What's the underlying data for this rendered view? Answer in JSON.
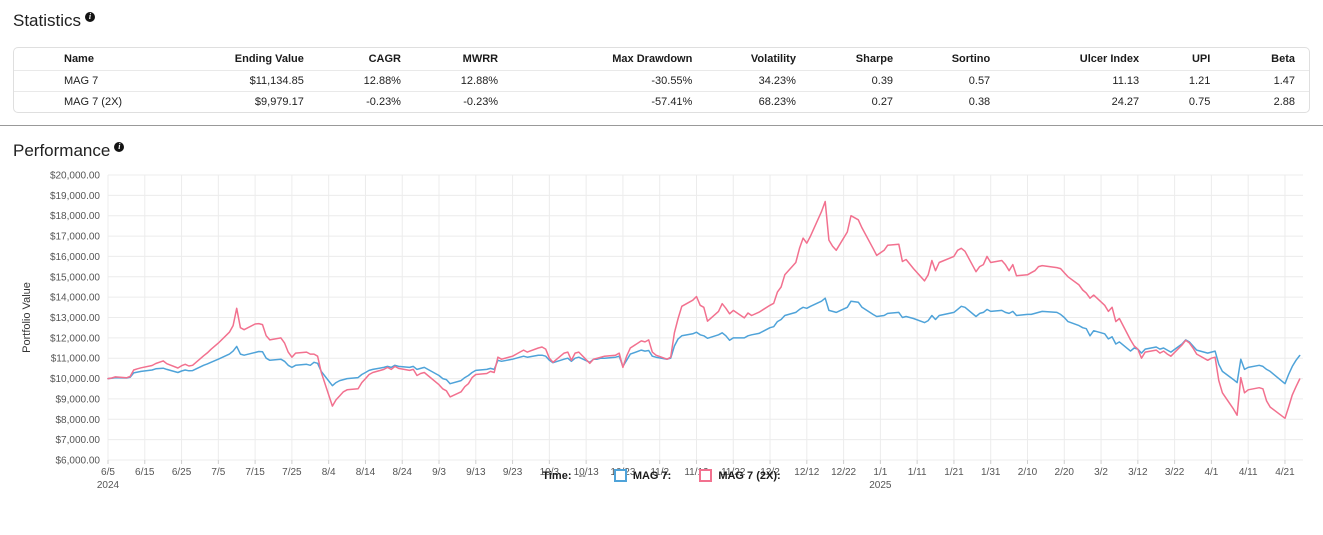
{
  "statistics": {
    "title": "Statistics",
    "info_icon_glyph": "i",
    "table": {
      "columns": [
        "Name",
        "Ending Value",
        "CAGR",
        "MWRR",
        "Max Drawdown",
        "Volatility",
        "Sharpe",
        "Sortino",
        "Ulcer Index",
        "UPI",
        "Beta"
      ],
      "rows": [
        [
          "MAG 7",
          "$11,134.85",
          "12.88%",
          "12.88%",
          "-30.55%",
          "34.23%",
          "0.39",
          "0.57",
          "11.13",
          "1.21",
          "1.47"
        ],
        [
          "MAG 7 (2X)",
          "$9,979.17",
          "-0.23%",
          "-0.23%",
          "-57.41%",
          "68.23%",
          "0.27",
          "0.38",
          "24.27",
          "0.75",
          "2.88"
        ]
      ]
    }
  },
  "performance": {
    "title": "Performance",
    "info_icon_glyph": "i"
  },
  "legend": {
    "time_label": "Time:",
    "time_value": "--",
    "items": [
      {
        "label": "MAG 7:",
        "color": "#4fa3d9"
      },
      {
        "label": "MAG 7 (2X):",
        "color": "#f2718f"
      }
    ]
  },
  "chart_data": {
    "type": "line",
    "title": "",
    "xlabel": "",
    "ylabel": "Portfolio Value",
    "ylim": [
      6000,
      20000
    ],
    "ytick_step": 1000,
    "grid": true,
    "legend_position": "bottom",
    "ytick_labels": [
      "$20,000.00",
      "$19,000.00",
      "$18,000.00",
      "$17,000.00",
      "$16,000.00",
      "$15,000.00",
      "$14,000.00",
      "$13,000.00",
      "$12,000.00",
      "$11,000.00",
      "$10,000.00",
      "$9,000.00",
      "$8,000.00",
      "$7,000.00",
      "$6,000.00"
    ],
    "xticks": [
      {
        "label": "6/5",
        "year": "2024",
        "date": "2024-06-05"
      },
      {
        "label": "6/15",
        "date": "2024-06-15"
      },
      {
        "label": "6/25",
        "date": "2024-06-25"
      },
      {
        "label": "7/5",
        "date": "2024-07-05"
      },
      {
        "label": "7/15",
        "date": "2024-07-15"
      },
      {
        "label": "7/25",
        "date": "2024-07-25"
      },
      {
        "label": "8/4",
        "date": "2024-08-04"
      },
      {
        "label": "8/14",
        "date": "2024-08-14"
      },
      {
        "label": "8/24",
        "date": "2024-08-24"
      },
      {
        "label": "9/3",
        "date": "2024-09-03"
      },
      {
        "label": "9/13",
        "date": "2024-09-13"
      },
      {
        "label": "9/23",
        "date": "2024-09-23"
      },
      {
        "label": "10/3",
        "date": "2024-10-03"
      },
      {
        "label": "10/13",
        "date": "2024-10-13"
      },
      {
        "label": "10/23",
        "date": "2024-10-23"
      },
      {
        "label": "11/2",
        "date": "2024-11-02"
      },
      {
        "label": "11/12",
        "date": "2024-11-12"
      },
      {
        "label": "11/22",
        "date": "2024-11-22"
      },
      {
        "label": "12/2",
        "date": "2024-12-02"
      },
      {
        "label": "12/12",
        "date": "2024-12-12"
      },
      {
        "label": "12/22",
        "date": "2024-12-22"
      },
      {
        "label": "1/1",
        "year": "2025",
        "date": "2025-01-01"
      },
      {
        "label": "1/11",
        "date": "2025-01-11"
      },
      {
        "label": "1/21",
        "date": "2025-01-21"
      },
      {
        "label": "1/31",
        "date": "2025-01-31"
      },
      {
        "label": "2/10",
        "date": "2025-02-10"
      },
      {
        "label": "2/20",
        "date": "2025-02-20"
      },
      {
        "label": "3/2",
        "date": "2025-03-02"
      },
      {
        "label": "3/12",
        "date": "2025-03-12"
      },
      {
        "label": "3/22",
        "date": "2025-03-22"
      },
      {
        "label": "4/1",
        "date": "2025-04-01"
      },
      {
        "label": "4/11",
        "date": "2025-04-11"
      },
      {
        "label": "4/21",
        "date": "2025-04-21"
      }
    ],
    "series": [
      {
        "name": "MAG 7",
        "color": "#4fa3d9",
        "ending_value": 11134.85
      },
      {
        "name": "MAG 7 (2X)",
        "color": "#f2718f",
        "ending_value": 9979.17
      }
    ],
    "points": [
      [
        "2024-06-05",
        10000,
        10000
      ],
      [
        "2024-06-06",
        10020,
        10030
      ],
      [
        "2024-06-07",
        10050,
        10080
      ],
      [
        "2024-06-10",
        10030,
        10040
      ],
      [
        "2024-06-11",
        10060,
        10100
      ],
      [
        "2024-06-12",
        10280,
        10420
      ],
      [
        "2024-06-13",
        10320,
        10480
      ],
      [
        "2024-06-14",
        10350,
        10530
      ],
      [
        "2024-06-17",
        10420,
        10640
      ],
      [
        "2024-06-18",
        10480,
        10740
      ],
      [
        "2024-06-20",
        10510,
        10870
      ],
      [
        "2024-06-21",
        10450,
        10730
      ],
      [
        "2024-06-24",
        10300,
        10520
      ],
      [
        "2024-06-25",
        10370,
        10630
      ],
      [
        "2024-06-26",
        10420,
        10700
      ],
      [
        "2024-06-27",
        10380,
        10620
      ],
      [
        "2024-06-28",
        10390,
        10650
      ],
      [
        "2024-07-01",
        10650,
        11120
      ],
      [
        "2024-07-02",
        10720,
        11260
      ],
      [
        "2024-07-03",
        10800,
        11440
      ],
      [
        "2024-07-05",
        10950,
        11740
      ],
      [
        "2024-07-08",
        11200,
        12280
      ],
      [
        "2024-07-09",
        11350,
        12600
      ],
      [
        "2024-07-10",
        11580,
        13450
      ],
      [
        "2024-07-11",
        11200,
        12500
      ],
      [
        "2024-07-12",
        11150,
        12400
      ],
      [
        "2024-07-15",
        11280,
        12680
      ],
      [
        "2024-07-16",
        11330,
        12700
      ],
      [
        "2024-07-17",
        11320,
        12650
      ],
      [
        "2024-07-18",
        11000,
        12100
      ],
      [
        "2024-07-19",
        10900,
        11900
      ],
      [
        "2024-07-22",
        10950,
        12000
      ],
      [
        "2024-07-23",
        10850,
        11750
      ],
      [
        "2024-07-24",
        10650,
        11300
      ],
      [
        "2024-07-25",
        10550,
        11050
      ],
      [
        "2024-07-26",
        10650,
        11250
      ],
      [
        "2024-07-29",
        10700,
        11300
      ],
      [
        "2024-07-30",
        10650,
        11200
      ],
      [
        "2024-07-31",
        10800,
        11200
      ],
      [
        "2024-08-01",
        10750,
        11100
      ],
      [
        "2024-08-02",
        10350,
        10300
      ],
      [
        "2024-08-05",
        9650,
        8650
      ],
      [
        "2024-08-06",
        9800,
        8950
      ],
      [
        "2024-08-07",
        9900,
        9150
      ],
      [
        "2024-08-08",
        9950,
        9350
      ],
      [
        "2024-08-09",
        10000,
        9450
      ],
      [
        "2024-08-12",
        10050,
        9500
      ],
      [
        "2024-08-13",
        10200,
        9800
      ],
      [
        "2024-08-14",
        10300,
        10000
      ],
      [
        "2024-08-15",
        10400,
        10200
      ],
      [
        "2024-08-16",
        10450,
        10300
      ],
      [
        "2024-08-19",
        10550,
        10450
      ],
      [
        "2024-08-20",
        10600,
        10550
      ],
      [
        "2024-08-21",
        10550,
        10450
      ],
      [
        "2024-08-22",
        10650,
        10600
      ],
      [
        "2024-08-23",
        10600,
        10500
      ],
      [
        "2024-08-26",
        10550,
        10400
      ],
      [
        "2024-08-27",
        10600,
        10450
      ],
      [
        "2024-08-28",
        10450,
        10150
      ],
      [
        "2024-08-29",
        10500,
        10250
      ],
      [
        "2024-08-30",
        10550,
        10300
      ],
      [
        "2024-09-03",
        10150,
        9700
      ],
      [
        "2024-09-04",
        10000,
        9500
      ],
      [
        "2024-09-05",
        9950,
        9400
      ],
      [
        "2024-09-06",
        9750,
        9100
      ],
      [
        "2024-09-09",
        9900,
        9350
      ],
      [
        "2024-09-10",
        10050,
        9600
      ],
      [
        "2024-09-11",
        10150,
        9750
      ],
      [
        "2024-09-12",
        10300,
        10050
      ],
      [
        "2024-09-13",
        10400,
        10200
      ],
      [
        "2024-09-16",
        10450,
        10250
      ],
      [
        "2024-09-17",
        10500,
        10350
      ],
      [
        "2024-09-18",
        10450,
        10300
      ],
      [
        "2024-09-19",
        10900,
        11050
      ],
      [
        "2024-09-20",
        10850,
        10950
      ],
      [
        "2024-09-23",
        10950,
        11100
      ],
      [
        "2024-09-24",
        11000,
        11200
      ],
      [
        "2024-09-25",
        11050,
        11300
      ],
      [
        "2024-09-26",
        11100,
        11400
      ],
      [
        "2024-09-27",
        11050,
        11300
      ],
      [
        "2024-09-30",
        11150,
        11500
      ],
      [
        "2024-10-01",
        11150,
        11550
      ],
      [
        "2024-10-02",
        11100,
        11450
      ],
      [
        "2024-10-03",
        10900,
        11000
      ],
      [
        "2024-10-04",
        10780,
        10800
      ],
      [
        "2024-10-07",
        10950,
        11250
      ],
      [
        "2024-10-08",
        11000,
        11300
      ],
      [
        "2024-10-09",
        10850,
        10900
      ],
      [
        "2024-10-10",
        11000,
        11250
      ],
      [
        "2024-10-11",
        11050,
        11300
      ],
      [
        "2024-10-14",
        10800,
        10750
      ],
      [
        "2024-10-15",
        10950,
        10950
      ],
      [
        "2024-10-16",
        10950,
        11000
      ],
      [
        "2024-10-17",
        11000,
        11050
      ],
      [
        "2024-10-18",
        11000,
        11100
      ],
      [
        "2024-10-21",
        11050,
        11150
      ],
      [
        "2024-10-22",
        11100,
        11250
      ],
      [
        "2024-10-23",
        10600,
        10550
      ],
      [
        "2024-10-24",
        10900,
        11100
      ],
      [
        "2024-10-25",
        11200,
        11500
      ],
      [
        "2024-10-28",
        11400,
        11850
      ],
      [
        "2024-10-29",
        11350,
        11800
      ],
      [
        "2024-10-30",
        11380,
        11900
      ],
      [
        "2024-10-31",
        11100,
        11300
      ],
      [
        "2024-11-01",
        11050,
        11150
      ],
      [
        "2024-11-04",
        10950,
        10950
      ],
      [
        "2024-11-05",
        11000,
        11050
      ],
      [
        "2024-11-06",
        11600,
        12250
      ],
      [
        "2024-11-07",
        11950,
        12950
      ],
      [
        "2024-11-08",
        12100,
        13550
      ],
      [
        "2024-11-11",
        12200,
        13850
      ],
      [
        "2024-11-12",
        12280,
        14030
      ],
      [
        "2024-11-13",
        12150,
        13600
      ],
      [
        "2024-11-14",
        12100,
        13500
      ],
      [
        "2024-11-15",
        11980,
        12820
      ],
      [
        "2024-11-18",
        12150,
        13300
      ],
      [
        "2024-11-19",
        12250,
        13680
      ],
      [
        "2024-11-20",
        12100,
        13450
      ],
      [
        "2024-11-21",
        11880,
        13180
      ],
      [
        "2024-11-22",
        12000,
        13350
      ],
      [
        "2024-11-25",
        12000,
        12980
      ],
      [
        "2024-11-26",
        12100,
        13220
      ],
      [
        "2024-11-27",
        12150,
        13100
      ],
      [
        "2024-11-29",
        12220,
        13260
      ],
      [
        "2024-12-02",
        12500,
        13600
      ],
      [
        "2024-12-03",
        12550,
        13700
      ],
      [
        "2024-12-04",
        12800,
        14250
      ],
      [
        "2024-12-05",
        12900,
        14500
      ],
      [
        "2024-12-06",
        13100,
        15100
      ],
      [
        "2024-12-09",
        13250,
        15700
      ],
      [
        "2024-12-10",
        13400,
        16400
      ],
      [
        "2024-12-11",
        13500,
        16900
      ],
      [
        "2024-12-12",
        13450,
        16650
      ],
      [
        "2024-12-13",
        13550,
        17000
      ],
      [
        "2024-12-16",
        13800,
        18200
      ],
      [
        "2024-12-17",
        13950,
        18700
      ],
      [
        "2024-12-18",
        13350,
        16800
      ],
      [
        "2024-12-19",
        13300,
        16500
      ],
      [
        "2024-12-20",
        13250,
        16300
      ],
      [
        "2024-12-23",
        13500,
        17200
      ],
      [
        "2024-12-24",
        13800,
        18000
      ],
      [
        "2024-12-26",
        13750,
        17800
      ],
      [
        "2024-12-27",
        13500,
        17400
      ],
      [
        "2024-12-30",
        13150,
        16400
      ],
      [
        "2024-12-31",
        13050,
        16050
      ],
      [
        "2025-01-02",
        13100,
        16300
      ],
      [
        "2025-01-03",
        13200,
        16550
      ],
      [
        "2025-01-06",
        13250,
        16600
      ],
      [
        "2025-01-07",
        13000,
        15750
      ],
      [
        "2025-01-08",
        13050,
        15850
      ],
      [
        "2025-01-10",
        12950,
        15400
      ],
      [
        "2025-01-13",
        12750,
        14800
      ],
      [
        "2025-01-14",
        12850,
        15100
      ],
      [
        "2025-01-15",
        13100,
        15800
      ],
      [
        "2025-01-16",
        12900,
        15300
      ],
      [
        "2025-01-17",
        13100,
        15700
      ],
      [
        "2025-01-21",
        13250,
        16000
      ],
      [
        "2025-01-22",
        13400,
        16300
      ],
      [
        "2025-01-23",
        13550,
        16400
      ],
      [
        "2025-01-24",
        13500,
        16250
      ],
      [
        "2025-01-27",
        13050,
        15250
      ],
      [
        "2025-01-28",
        13200,
        15500
      ],
      [
        "2025-01-29",
        13250,
        15600
      ],
      [
        "2025-01-30",
        13400,
        16000
      ],
      [
        "2025-01-31",
        13300,
        15700
      ],
      [
        "2025-02-03",
        13350,
        15800
      ],
      [
        "2025-02-04",
        13250,
        15600
      ],
      [
        "2025-02-05",
        13200,
        15300
      ],
      [
        "2025-02-06",
        13300,
        15600
      ],
      [
        "2025-02-07",
        13100,
        15050
      ],
      [
        "2025-02-10",
        13150,
        15100
      ],
      [
        "2025-02-11",
        13150,
        15200
      ],
      [
        "2025-02-12",
        13200,
        15300
      ],
      [
        "2025-02-13",
        13250,
        15500
      ],
      [
        "2025-02-14",
        13300,
        15550
      ],
      [
        "2025-02-18",
        13250,
        15450
      ],
      [
        "2025-02-19",
        13150,
        15400
      ],
      [
        "2025-02-20",
        13000,
        15200
      ],
      [
        "2025-02-21",
        12800,
        15000
      ],
      [
        "2025-02-24",
        12600,
        14600
      ],
      [
        "2025-02-25",
        12500,
        14350
      ],
      [
        "2025-02-26",
        12450,
        14200
      ],
      [
        "2025-02-27",
        12100,
        13950
      ],
      [
        "2025-02-28",
        12350,
        14100
      ],
      [
        "2025-03-03",
        12200,
        13600
      ],
      [
        "2025-03-04",
        11950,
        13300
      ],
      [
        "2025-03-05",
        12050,
        13500
      ],
      [
        "2025-03-06",
        11700,
        12800
      ],
      [
        "2025-03-07",
        11800,
        12950
      ],
      [
        "2025-03-10",
        11350,
        11900
      ],
      [
        "2025-03-11",
        11500,
        11600
      ],
      [
        "2025-03-12",
        11450,
        11450
      ],
      [
        "2025-03-13",
        11250,
        11000
      ],
      [
        "2025-03-14",
        11450,
        11300
      ],
      [
        "2025-03-17",
        11550,
        11400
      ],
      [
        "2025-03-18",
        11450,
        11250
      ],
      [
        "2025-03-19",
        11500,
        11350
      ],
      [
        "2025-03-20",
        11400,
        11200
      ],
      [
        "2025-03-21",
        11300,
        11100
      ],
      [
        "2025-03-24",
        11700,
        11650
      ],
      [
        "2025-03-25",
        11900,
        11880
      ],
      [
        "2025-03-26",
        11800,
        11750
      ],
      [
        "2025-03-27",
        11600,
        11500
      ],
      [
        "2025-03-28",
        11400,
        11200
      ],
      [
        "2025-03-31",
        11250,
        10900
      ],
      [
        "2025-04-01",
        11300,
        11000
      ],
      [
        "2025-04-02",
        11350,
        11050
      ],
      [
        "2025-04-03",
        10700,
        9900
      ],
      [
        "2025-04-04",
        10350,
        9300
      ],
      [
        "2025-04-07",
        9950,
        8500
      ],
      [
        "2025-04-08",
        9800,
        8200
      ],
      [
        "2025-04-09",
        10950,
        10050
      ],
      [
        "2025-04-10",
        10450,
        9300
      ],
      [
        "2025-04-11",
        10550,
        9450
      ],
      [
        "2025-04-14",
        10650,
        9550
      ],
      [
        "2025-04-15",
        10600,
        9500
      ],
      [
        "2025-04-16",
        10450,
        8900
      ],
      [
        "2025-04-17",
        10350,
        8600
      ],
      [
        "2025-04-21",
        9750,
        8050
      ],
      [
        "2025-04-22",
        10200,
        8600
      ],
      [
        "2025-04-23",
        10600,
        9200
      ],
      [
        "2025-04-24",
        10900,
        9600
      ],
      [
        "2025-04-25",
        11134.85,
        9979.17
      ]
    ]
  }
}
